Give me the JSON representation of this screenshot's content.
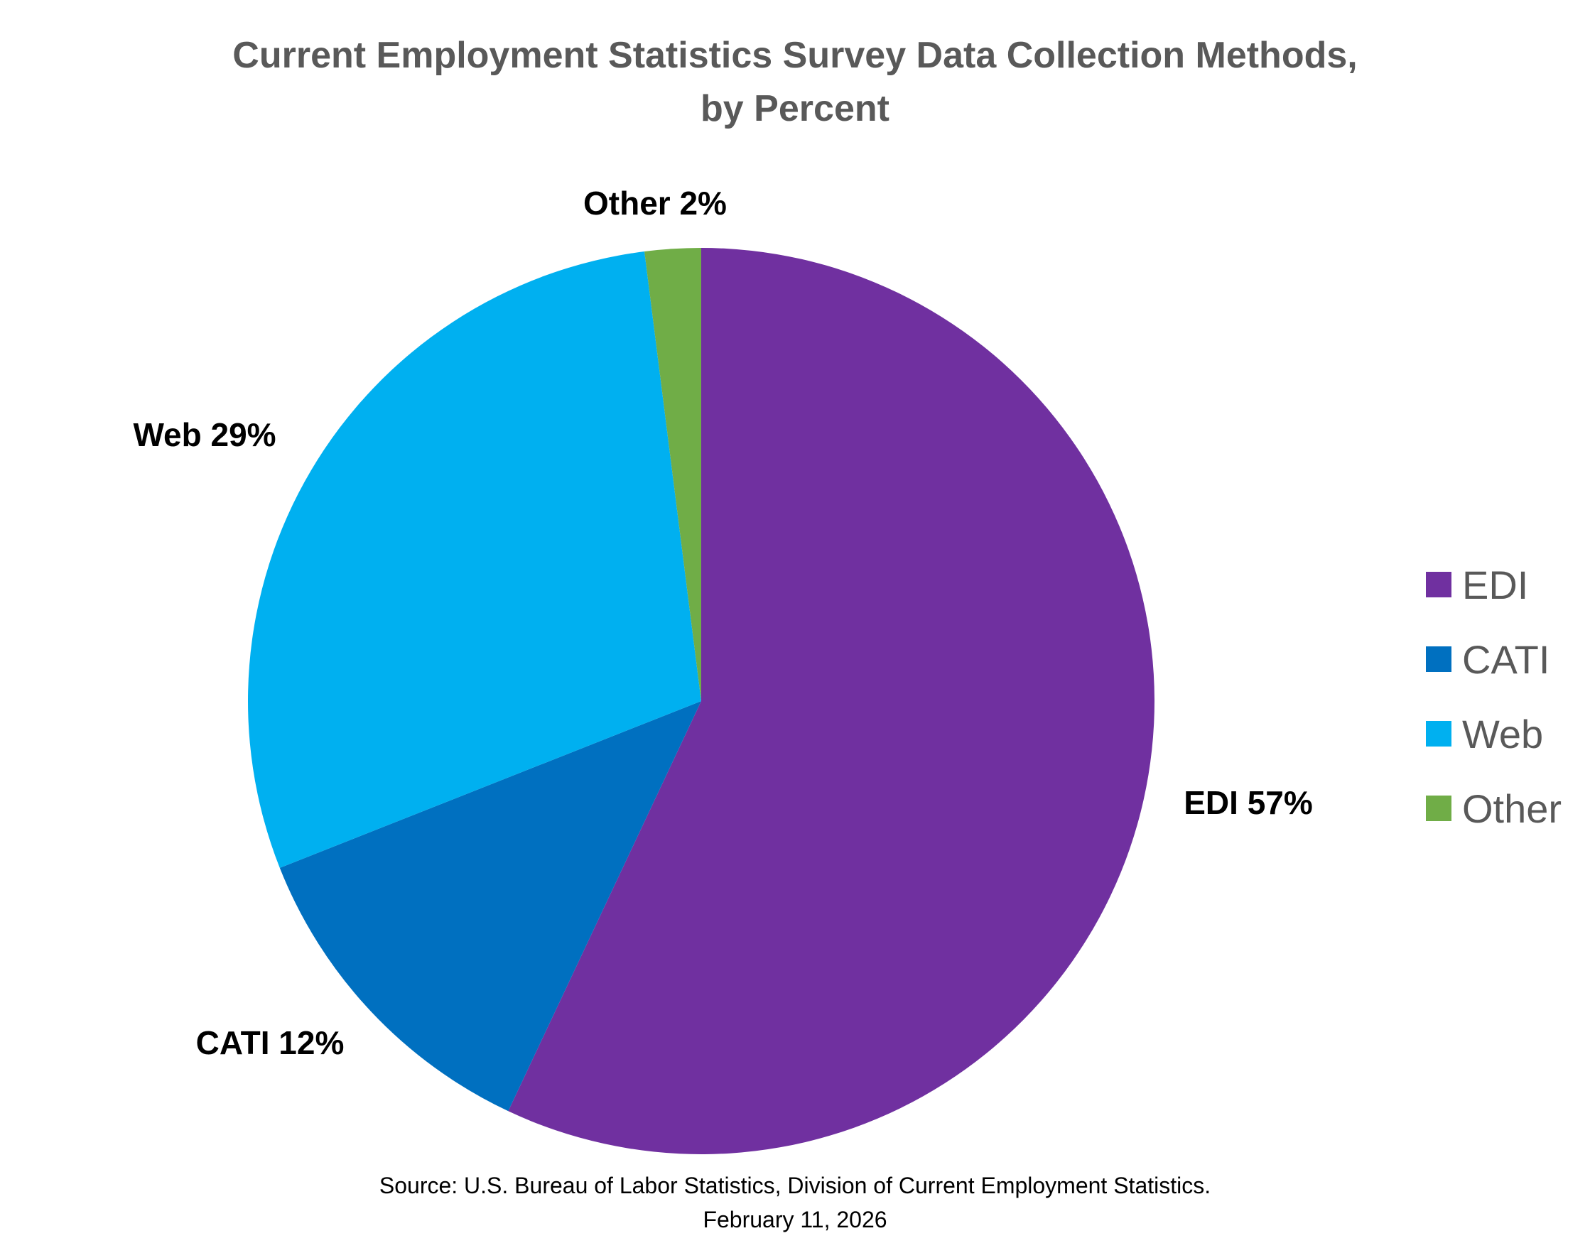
{
  "chart_data": {
    "type": "pie",
    "title_lines": [
      "Current Employment Statistics Survey Data Collection Methods,",
      "by Percent"
    ],
    "categories": [
      "EDI",
      "CATI",
      "Web",
      "Other"
    ],
    "values": [
      57,
      12,
      29,
      2
    ],
    "data_labels": [
      "EDI 57%",
      "CATI 12%",
      "Web 29%",
      "Other 2%"
    ],
    "colors": [
      "#7030A0",
      "#0070C0",
      "#00B0F0",
      "#70AD47"
    ],
    "start_angle": "12 o'clock",
    "direction": "clockwise",
    "legend_placement": "right"
  },
  "source": {
    "line1": "Source: U.S. Bureau of Labor Statistics, Division of Current Employment Statistics.",
    "line2": "February 11, 2026"
  }
}
